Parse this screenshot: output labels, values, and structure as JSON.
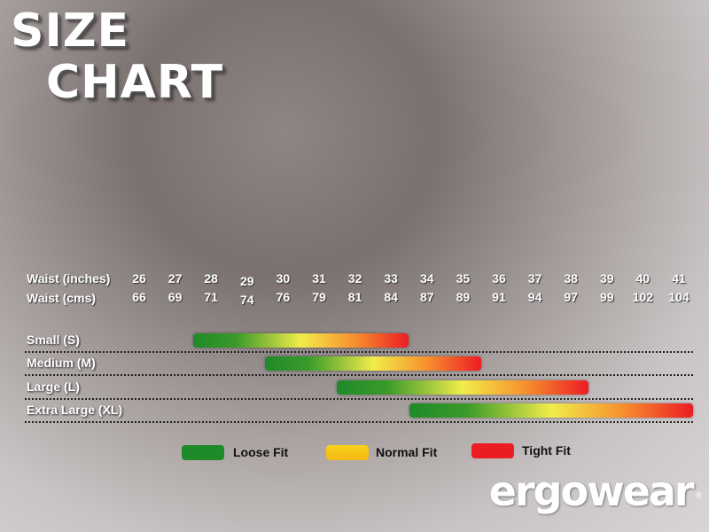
{
  "title_line1": "SIZE",
  "title_line2": "CHART",
  "chart_data": {
    "type": "range-bar",
    "row_labels": [
      "Waist (inches)",
      "Waist (cms)"
    ],
    "waist_inches": [
      26,
      27,
      28,
      29,
      30,
      31,
      32,
      33,
      34,
      35,
      36,
      37,
      38,
      39,
      40,
      41
    ],
    "waist_cms": [
      66,
      69,
      71,
      74,
      76,
      79,
      81,
      84,
      87,
      89,
      91,
      94,
      97,
      99,
      102,
      104
    ],
    "sizes": [
      {
        "label": "Small (S)",
        "from": 27.5,
        "to": 33.5
      },
      {
        "label": "Medium (M)",
        "from": 29.5,
        "to": 35.5
      },
      {
        "label": "Large (L)",
        "from": 31.5,
        "to": 38.5
      },
      {
        "label": "Extra Large (XL)",
        "from": 33.5,
        "to": 41.5
      }
    ],
    "gradient": [
      "#1f8a2a",
      "#f1ec4a",
      "#ec1c24"
    ]
  },
  "legend": [
    {
      "label": "Loose Fit",
      "color": "#1f8a2a"
    },
    {
      "label": "Normal Fit",
      "color": "#f5c518"
    },
    {
      "label": "Tight Fit",
      "color": "#ec1c24"
    }
  ],
  "logo": "ergowear",
  "logo_mark": "®"
}
